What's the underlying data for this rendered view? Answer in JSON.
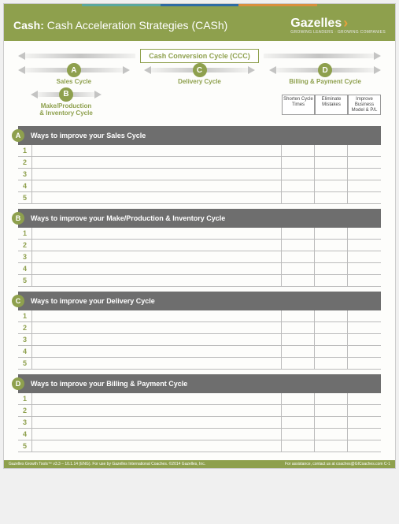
{
  "colors": {
    "olive": "#8ea04d",
    "header_gray": "#6e6e6e",
    "border_gray": "#bbbbbb",
    "amber": "#e8a13c",
    "accent_teal": "#5aa89e",
    "accent_blue": "#2e6ca4",
    "accent_orange": "#d98f3d",
    "page_bg": "#fdfdfb"
  },
  "header": {
    "title_bold": "Cash:",
    "title_rest": "Cash Acceleration Strategies (CASh)",
    "brand": "Gazelles",
    "brand_sub": "GROWING LEADERS · GROWING COMPANIES"
  },
  "diagram": {
    "ccc_label": "Cash Conversion Cycle (CCC)",
    "cycles": [
      {
        "letter": "A",
        "label": "Sales Cycle"
      },
      {
        "letter": "C",
        "label": "Delivery Cycle"
      },
      {
        "letter": "D",
        "label": "Billing & Payment Cycle"
      }
    ],
    "sub_cycle": {
      "letter": "B",
      "label": "Make/Production\n& Inventory Cycle"
    }
  },
  "column_headers": [
    "Shorten Cycle Times",
    "Eliminate Mistakes",
    "Improve Business Model & P/L"
  ],
  "sections": [
    {
      "letter": "A",
      "title": "Ways to improve your Sales Cycle",
      "rows": [
        1,
        2,
        3,
        4,
        5
      ]
    },
    {
      "letter": "B",
      "title": "Ways to improve your Make/Production & Inventory Cycle",
      "rows": [
        1,
        2,
        3,
        4,
        5
      ]
    },
    {
      "letter": "C",
      "title": "Ways to improve your Delivery Cycle",
      "rows": [
        1,
        2,
        3,
        4,
        5
      ]
    },
    {
      "letter": "D",
      "title": "Ways to improve your Billing & Payment Cycle",
      "rows": [
        1,
        2,
        3,
        4,
        5
      ]
    }
  ],
  "footer": {
    "left": "Gazelles Growth Tools™ v3.3 – 10.1.14 (ENG).   For use by Gazelles International Coaches. ©2014 Gazelles, Inc.",
    "right": "For assistance, contact us at coaches@GICoaches.com   C-1"
  }
}
